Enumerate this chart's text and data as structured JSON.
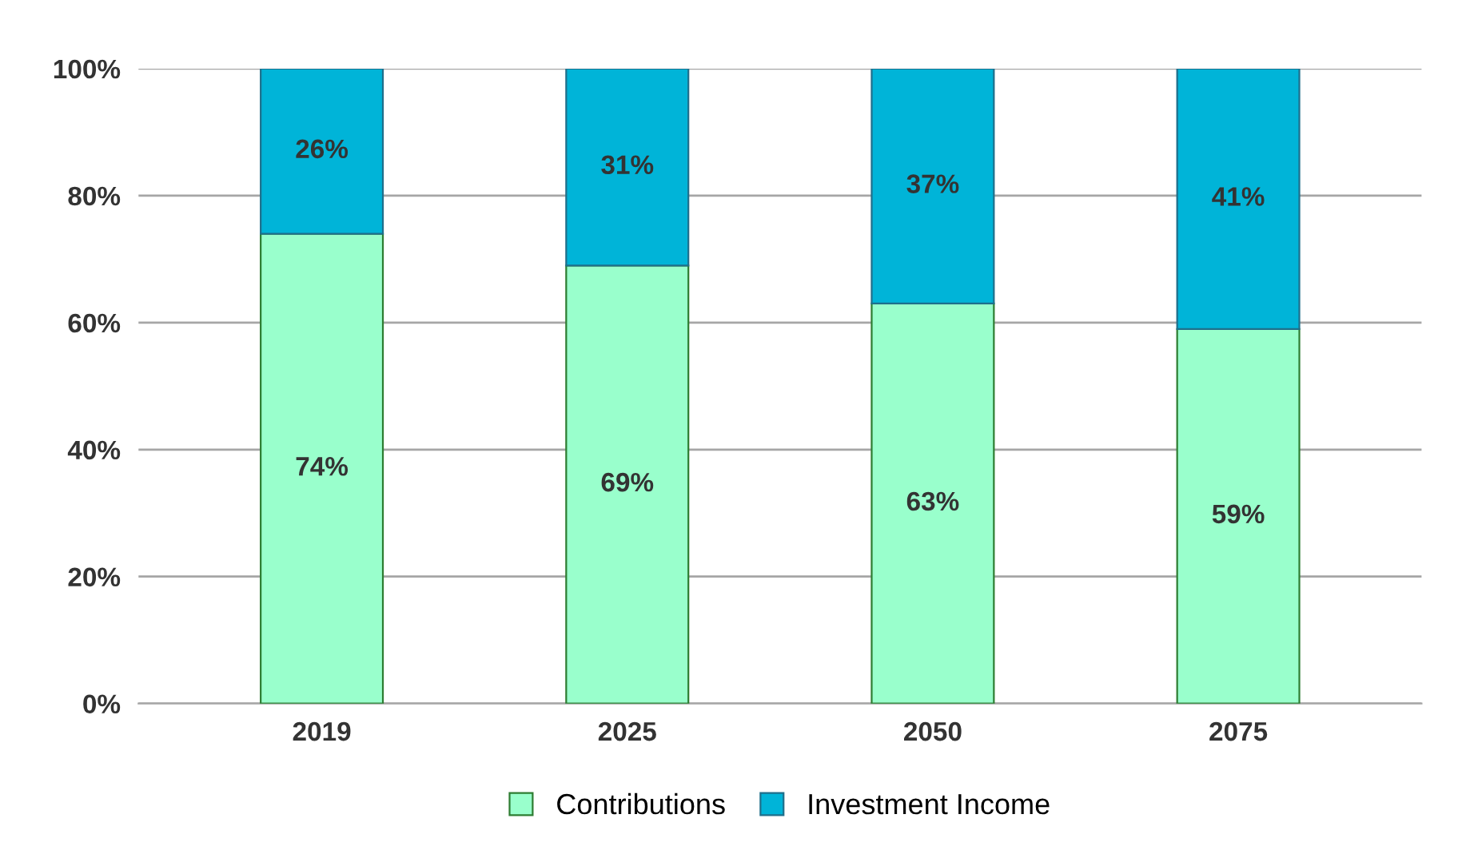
{
  "chart_data": {
    "type": "bar",
    "stacked": true,
    "categories": [
      "2019",
      "2025",
      "2050",
      "2075"
    ],
    "series": [
      {
        "name": "Contributions",
        "color": "#99ffcc",
        "values": [
          74,
          69,
          63,
          59
        ],
        "value_labels": [
          "74%",
          "69%",
          "63%",
          "59%"
        ]
      },
      {
        "name": "Investment Income",
        "color": "#00b4d8",
        "values": [
          26,
          31,
          37,
          41
        ],
        "value_labels": [
          "26%",
          "31%",
          "37%",
          "41%"
        ]
      }
    ],
    "ylim": [
      0,
      100
    ],
    "yticks": [
      {
        "value": 0,
        "label": "0%"
      },
      {
        "value": 20,
        "label": "20%"
      },
      {
        "value": 40,
        "label": "40%"
      },
      {
        "value": 60,
        "label": "60%"
      },
      {
        "value": 80,
        "label": "80%"
      },
      {
        "value": 100,
        "label": "100%"
      }
    ],
    "grid": "y",
    "legend": "bottom"
  }
}
